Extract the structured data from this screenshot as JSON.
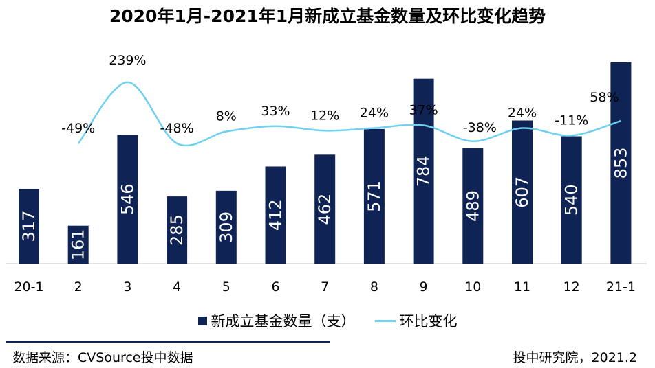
{
  "title": "2020年1月-2021年1月新成立基金数量及环比变化趋势",
  "legend": {
    "bar_label": "新成立基金数量（支）",
    "line_label": "环比变化"
  },
  "footer": {
    "source": "数据来源：CVSource投中数据",
    "credit": "投中研究院，2021.2"
  },
  "colors": {
    "bar": "#0f2355",
    "line": "#6fd0f0"
  },
  "chart_data": {
    "type": "bar",
    "categories": [
      "20-1",
      "2",
      "3",
      "4",
      "5",
      "6",
      "7",
      "8",
      "9",
      "10",
      "11",
      "12",
      "21-1"
    ],
    "series": [
      {
        "name": "新成立基金数量（支）",
        "type": "bar",
        "values": [
          317,
          161,
          546,
          285,
          309,
          412,
          462,
          571,
          784,
          489,
          607,
          540,
          853
        ]
      },
      {
        "name": "环比变化",
        "type": "line",
        "values": [
          null,
          -49,
          239,
          -48,
          8,
          33,
          12,
          24,
          37,
          -38,
          24,
          -11,
          58
        ],
        "labels": [
          "",
          "-49%",
          "239%",
          "-48%",
          "8%",
          "33%",
          "12%",
          "24%",
          "37%",
          "-38%",
          "24%",
          "-11%",
          "58%"
        ]
      }
    ]
  }
}
